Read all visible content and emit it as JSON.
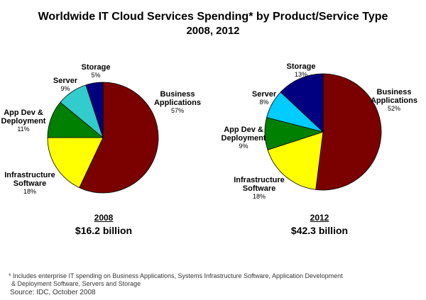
{
  "title": "Worldwide IT Cloud Services Spending* by Product/Service Type",
  "subtitle": "2008, 2012",
  "footnote_line1": "* Includes enterprise IT spending on Business Applications, Systems Infrastructure Software, Application Development",
  "footnote_line2": "& Deployment Software, Servers and Storage",
  "source": "Source: IDC, October 2008",
  "chart_data": [
    {
      "type": "pie",
      "year": "2008",
      "total": "$16.2 billion",
      "slices": [
        {
          "name": "Business Applications",
          "label_lines": [
            "Business",
            "Applications"
          ],
          "value": 57,
          "value_label": "57%",
          "color": "#7b0000"
        },
        {
          "name": "Infrastructure Software",
          "label_lines": [
            "Infrastructure",
            "Software"
          ],
          "value": 18,
          "value_label": "18%",
          "color": "#ffff00"
        },
        {
          "name": "App Dev & Deployment",
          "label_lines": [
            "App Dev &",
            "Deployment"
          ],
          "value": 11,
          "value_label": "11%",
          "color": "#008000"
        },
        {
          "name": "Server",
          "label_lines": [
            "Server"
          ],
          "value": 9,
          "value_label": "9%",
          "color": "#33cccc"
        },
        {
          "name": "Storage",
          "label_lines": [
            "Storage"
          ],
          "value": 5,
          "value_label": "5%",
          "color": "#000080"
        }
      ]
    },
    {
      "type": "pie",
      "year": "2012",
      "total": "$42.3 billion",
      "slices": [
        {
          "name": "Business Applications",
          "label_lines": [
            "Business",
            "Applications"
          ],
          "value": 52,
          "value_label": "52%",
          "color": "#7b0000"
        },
        {
          "name": "Infrastructure Software",
          "label_lines": [
            "Infrastructure",
            "Software"
          ],
          "value": 18,
          "value_label": "18%",
          "color": "#ffff00"
        },
        {
          "name": "App Dev & Deployment",
          "label_lines": [
            "App Dev &",
            "Deployment"
          ],
          "value": 9,
          "value_label": "9%",
          "color": "#008000"
        },
        {
          "name": "Server",
          "label_lines": [
            "Server"
          ],
          "value": 8,
          "value_label": "8%",
          "color": "#00ccff"
        },
        {
          "name": "Storage",
          "label_lines": [
            "Storage"
          ],
          "value": 13,
          "value_label": "13%",
          "color": "#000080"
        }
      ]
    }
  ]
}
